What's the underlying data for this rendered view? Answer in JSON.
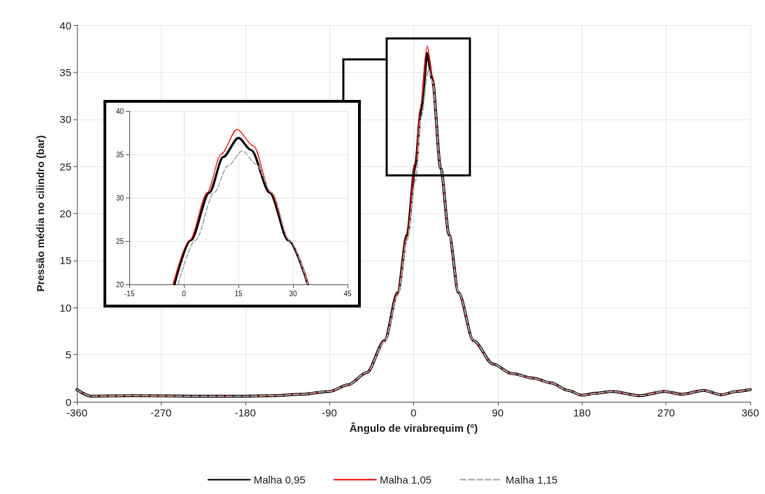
{
  "chart_data": [
    {
      "type": "line",
      "xlabel": "Ângulo de virabrequim (°)",
      "ylabel": "Pressão média no cilindro (bar)",
      "xlim": [
        -360,
        360
      ],
      "xticks": [
        -360,
        -270,
        -180,
        -90,
        0,
        90,
        180,
        270,
        360
      ],
      "ylim": [
        0,
        40
      ],
      "yticks": [
        0,
        5,
        10,
        15,
        20,
        25,
        30,
        35,
        40
      ],
      "grid": true,
      "legend": "bottom",
      "marker": "none",
      "series": [
        {
          "name": "Malha 0,95",
          "color": "#000000",
          "line_style": "solid",
          "x": [
            -360,
            -345,
            -300,
            -240,
            -180,
            -150,
            -120,
            -90,
            -70,
            -50,
            -31,
            -17,
            -7,
            2,
            8,
            14.6,
            20,
            29,
            38,
            48,
            64,
            85,
            105,
            128,
            147,
            165,
            180,
            195,
            212,
            242,
            268,
            287,
            310,
            329,
            345,
            360
          ],
          "values": [
            1.3,
            0.6,
            0.65,
            0.6,
            0.6,
            0.65,
            0.8,
            1.1,
            1.8,
            3.1,
            6.5,
            11.6,
            17.7,
            25.2,
            31,
            37,
            34.2,
            24.8,
            17.7,
            11.6,
            6.5,
            4,
            3,
            2.5,
            2,
            1.2,
            0.7,
            0.9,
            1.1,
            0.65,
            1.1,
            0.8,
            1.2,
            0.75,
            1.1,
            1.3
          ]
        },
        {
          "name": "Malha 1,05",
          "color": "#ff0000",
          "line_style": "solid",
          "x": [
            -360,
            -345,
            -300,
            -240,
            -180,
            -150,
            -120,
            -90,
            -70,
            -50,
            -31,
            -17,
            -7,
            2,
            8,
            14.4,
            20,
            29,
            38,
            48,
            64,
            85,
            105,
            128,
            147,
            165,
            180,
            195,
            212,
            242,
            268,
            287,
            310,
            329,
            345,
            360
          ],
          "values": [
            1.3,
            0.6,
            0.65,
            0.6,
            0.6,
            0.65,
            0.8,
            1.1,
            1.8,
            3.1,
            6.5,
            11.6,
            17.8,
            25.4,
            31.6,
            37.8,
            34.6,
            24.9,
            17.7,
            11.6,
            6.5,
            4,
            3,
            2.5,
            2,
            1.2,
            0.7,
            0.9,
            1.1,
            0.65,
            1.1,
            0.8,
            1.2,
            0.75,
            1.1,
            1.3
          ]
        },
        {
          "name": "Malha 1,15",
          "color": "#a6a6a6",
          "line_style": "dashed",
          "x": [
            -360,
            -345,
            -300,
            -240,
            -180,
            -150,
            -120,
            -90,
            -70,
            -50,
            -31,
            -17,
            -7,
            2,
            8,
            16,
            20,
            29,
            38,
            48,
            64,
            85,
            105,
            128,
            147,
            165,
            180,
            195,
            212,
            242,
            268,
            287,
            310,
            329,
            345,
            360
          ],
          "values": [
            1.3,
            0.6,
            0.65,
            0.6,
            0.6,
            0.65,
            0.8,
            1.1,
            1.8,
            3.1,
            6.4,
            11.3,
            17.2,
            23.5,
            30.2,
            35.3,
            34,
            24.8,
            17.7,
            11.6,
            6.5,
            4,
            3,
            2.5,
            2,
            1.2,
            0.7,
            0.9,
            1.1,
            0.65,
            1.1,
            0.8,
            1.2,
            0.75,
            1.1,
            1.3
          ]
        }
      ]
    },
    {
      "type": "line",
      "xlim": [
        -15,
        45
      ],
      "xticks": [
        -15,
        0,
        15,
        30,
        45
      ],
      "ylim": [
        20,
        40
      ],
      "yticks": [
        20,
        25,
        30,
        35,
        40
      ],
      "grid": true,
      "marker": "none",
      "series": [
        {
          "color": "#000000",
          "line_style": "solid",
          "x": [
            -2.6,
            1.9,
            7,
            10.8,
            15,
            18.5,
            23.6,
            28.7,
            34.1
          ],
          "values": [
            20,
            25.1,
            30.6,
            34.7,
            36.9,
            35.5,
            30.6,
            25.1,
            20
          ]
        },
        {
          "color": "#ff0000",
          "line_style": "solid",
          "x": [
            -3,
            1.6,
            6.4,
            10.2,
            14.6,
            19.1,
            23.9,
            29,
            34.3
          ],
          "values": [
            20,
            25.1,
            30.6,
            35,
            37.9,
            36,
            30.6,
            25.1,
            20
          ]
        },
        {
          "color": "#a6a6a6",
          "line_style": "dashed",
          "x": [
            -1.6,
            3.2,
            8.3,
            12.1,
            16.1,
            19.8,
            24.2,
            29,
            34.1
          ],
          "values": [
            20,
            25.1,
            30.6,
            33.7,
            35.4,
            33.9,
            30.6,
            25.1,
            20
          ]
        }
      ]
    }
  ]
}
